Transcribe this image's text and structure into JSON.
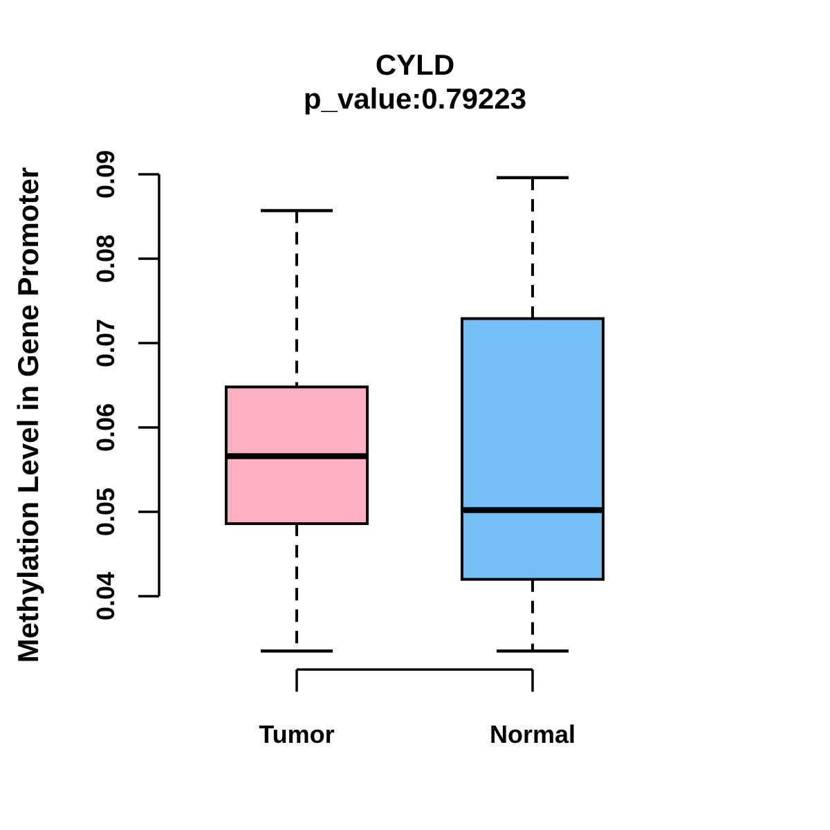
{
  "title": "CYLD",
  "subtitle": "p_value:0.79223",
  "chart_data": {
    "type": "boxplot",
    "title": "CYLD",
    "subtitle": "p_value:0.79223",
    "p_value": 0.79223,
    "ylabel": "Methylation Level in Gene Promoter",
    "xlabel": "",
    "ylim_axis": [
      0.04,
      0.09
    ],
    "yticks": [
      "0.04",
      "0.05",
      "0.06",
      "0.07",
      "0.08",
      "0.09"
    ],
    "ytick_values": [
      0.04,
      0.05,
      0.06,
      0.07,
      0.08,
      0.09
    ],
    "grid": false,
    "legend": "none",
    "groups": [
      {
        "label": "Tumor",
        "fill_color": "#FFB1C1",
        "whisker_low": 0.0335,
        "q1": 0.0486,
        "median": 0.0566,
        "q3": 0.0648,
        "whisker_high": 0.0857,
        "outliers": []
      },
      {
        "label": "Normal",
        "fill_color": "#75BFF7",
        "whisker_low": 0.0335,
        "q1": 0.042,
        "median": 0.0502,
        "q3": 0.0729,
        "whisker_high": 0.0896,
        "outliers": []
      }
    ],
    "colors": {
      "box_border": "#000000",
      "median_line": "#000000",
      "axis": "#000000",
      "text": "#000000",
      "background": "#FFFFFF"
    }
  }
}
